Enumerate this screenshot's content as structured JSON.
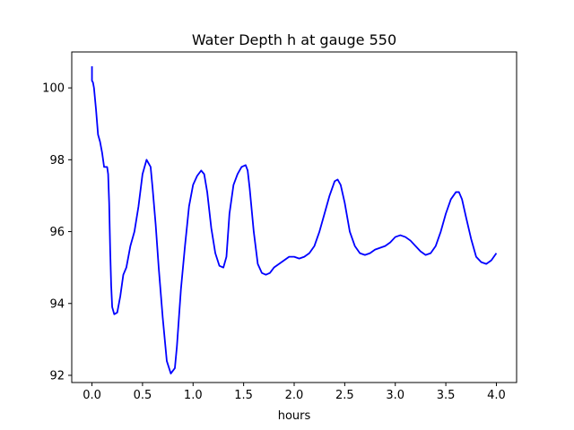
{
  "chart_data": {
    "type": "line",
    "title": "Water Depth h at gauge 550",
    "xlabel": "hours",
    "ylabel": "",
    "xlim": [
      -0.2,
      4.2
    ],
    "ylim": [
      91.8,
      101.0
    ],
    "xticks": [
      0.0,
      0.5,
      1.0,
      1.5,
      2.0,
      2.5,
      3.0,
      3.5,
      4.0
    ],
    "xtick_labels": [
      "0.0",
      "0.5",
      "1.0",
      "1.5",
      "2.0",
      "2.5",
      "3.0",
      "3.5",
      "4.0"
    ],
    "yticks": [
      92,
      94,
      96,
      98,
      100
    ],
    "ytick_labels": [
      "92",
      "94",
      "96",
      "98",
      "100"
    ],
    "grid": false,
    "series": [
      {
        "color": "#0000ff",
        "x": [
          0.0,
          0.0,
          0.01,
          0.02,
          0.04,
          0.06,
          0.08,
          0.1,
          0.12,
          0.14,
          0.15,
          0.16,
          0.17,
          0.18,
          0.19,
          0.2,
          0.22,
          0.25,
          0.28,
          0.31,
          0.34,
          0.38,
          0.42,
          0.46,
          0.5,
          0.54,
          0.58,
          0.6,
          0.63,
          0.66,
          0.7,
          0.74,
          0.78,
          0.82,
          0.84,
          0.86,
          0.88,
          0.92,
          0.96,
          1.0,
          1.04,
          1.08,
          1.11,
          1.14,
          1.18,
          1.22,
          1.26,
          1.3,
          1.33,
          1.36,
          1.4,
          1.44,
          1.48,
          1.52,
          1.54,
          1.56,
          1.6,
          1.64,
          1.68,
          1.72,
          1.76,
          1.8,
          1.85,
          1.9,
          1.95,
          2.0,
          2.05,
          2.1,
          2.15,
          2.2,
          2.25,
          2.3,
          2.35,
          2.4,
          2.43,
          2.46,
          2.5,
          2.55,
          2.6,
          2.65,
          2.7,
          2.75,
          2.8,
          2.85,
          2.9,
          2.95,
          3.0,
          3.05,
          3.1,
          3.15,
          3.2,
          3.25,
          3.3,
          3.35,
          3.4,
          3.45,
          3.5,
          3.55,
          3.6,
          3.63,
          3.66,
          3.7,
          3.75,
          3.8,
          3.85,
          3.9,
          3.95,
          4.0
        ],
        "y": [
          100.6,
          100.2,
          100.15,
          100.0,
          99.4,
          98.7,
          98.5,
          98.2,
          97.8,
          97.8,
          97.8,
          97.6,
          96.8,
          95.5,
          94.5,
          93.9,
          93.7,
          93.75,
          94.2,
          94.8,
          95.0,
          95.6,
          96.0,
          96.7,
          97.6,
          98.0,
          97.8,
          97.2,
          96.2,
          95.0,
          93.6,
          92.4,
          92.05,
          92.2,
          92.8,
          93.6,
          94.4,
          95.6,
          96.7,
          97.3,
          97.55,
          97.7,
          97.6,
          97.1,
          96.1,
          95.4,
          95.05,
          95.0,
          95.3,
          96.5,
          97.3,
          97.6,
          97.8,
          97.85,
          97.7,
          97.2,
          96.0,
          95.1,
          94.85,
          94.8,
          94.85,
          95.0,
          95.1,
          95.2,
          95.3,
          95.3,
          95.25,
          95.3,
          95.4,
          95.6,
          96.0,
          96.5,
          97.0,
          97.4,
          97.45,
          97.3,
          96.8,
          96.0,
          95.6,
          95.4,
          95.35,
          95.4,
          95.5,
          95.55,
          95.6,
          95.7,
          95.85,
          95.9,
          95.85,
          95.75,
          95.6,
          95.45,
          95.35,
          95.4,
          95.6,
          96.0,
          96.5,
          96.9,
          97.1,
          97.1,
          96.9,
          96.4,
          95.8,
          95.3,
          95.15,
          95.1,
          95.2,
          95.4
        ]
      }
    ]
  }
}
